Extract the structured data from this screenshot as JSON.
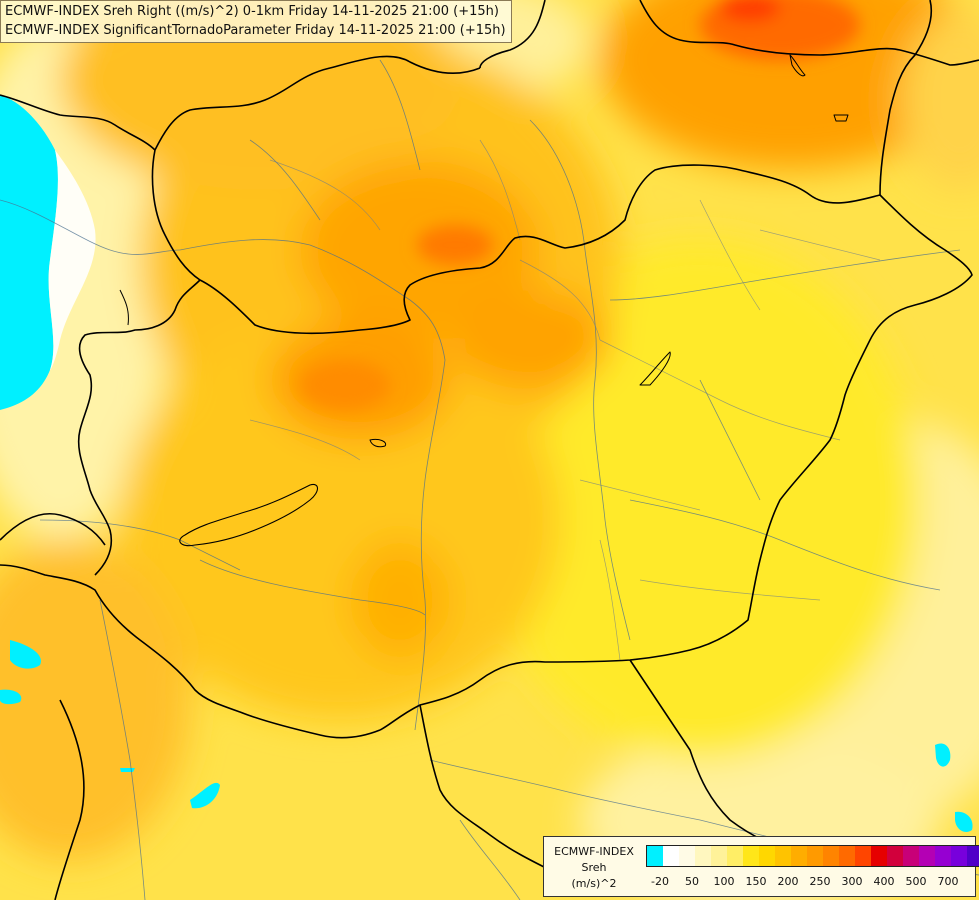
{
  "header": {
    "line1": "ECMWF-INDEX Sreh Right ((m/s)^2) 0-1km Friday 14-11-2025 21:00 (+15h)",
    "line2": "ECMWF-INDEX SignificantTornadoParameter Friday 14-11-2025 21:00 (+15h)"
  },
  "legend": {
    "title": "ECMWF-INDEX",
    "variable": "Sreh",
    "unit": "(m/s)^2",
    "colors": [
      "#00f0ff",
      "#ffffff",
      "#fffbe6",
      "#fff7bf",
      "#fff299",
      "#ffee66",
      "#ffe619",
      "#ffd700",
      "#ffc300",
      "#ffad00",
      "#ff9a00",
      "#ff8400",
      "#ff6a00",
      "#ff4500",
      "#e60000",
      "#d2003c",
      "#c80078",
      "#b400b4",
      "#9600d2",
      "#7800dc",
      "#5000c8",
      "#1e0096"
    ],
    "ticks": [
      "-20",
      "50",
      "100",
      "150",
      "200",
      "250",
      "300",
      "400",
      "500",
      "700"
    ]
  }
}
